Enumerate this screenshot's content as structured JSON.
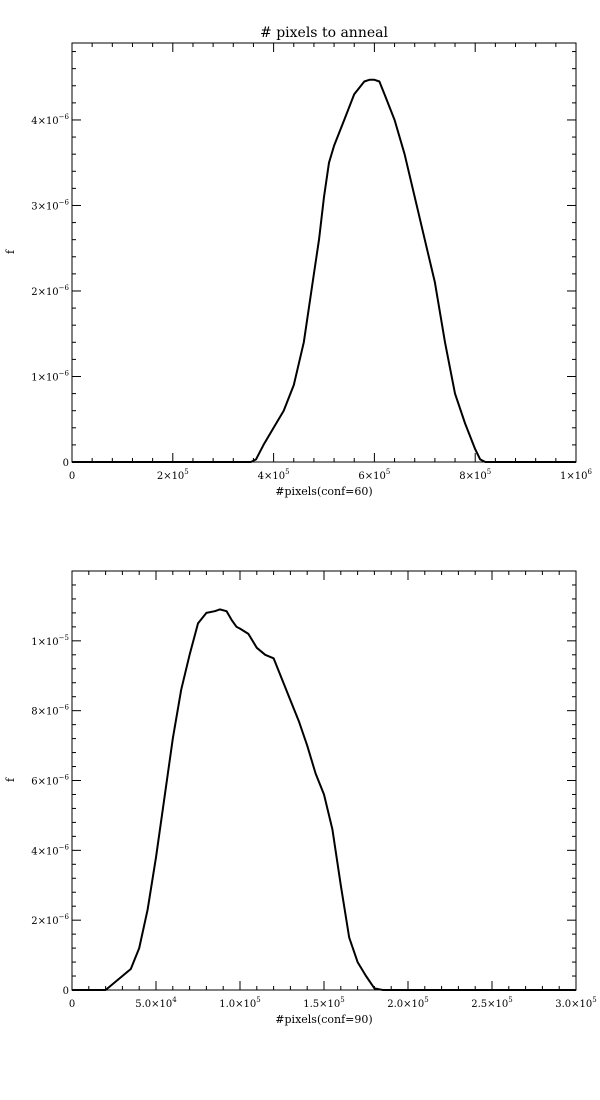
{
  "chart_data": [
    {
      "type": "line",
      "title": "# pixels to anneal",
      "xlabel": "#pixels(conf=60)",
      "ylabel": "f",
      "xlim": [
        0,
        1000000
      ],
      "ylim": [
        0,
        4.9e-06
      ],
      "x_ticks": [
        {
          "value": 0,
          "mantissa": "0",
          "exp": ""
        },
        {
          "value": 200000,
          "mantissa": "2×10",
          "exp": "5"
        },
        {
          "value": 400000,
          "mantissa": "4×10",
          "exp": "5"
        },
        {
          "value": 600000,
          "mantissa": "6×10",
          "exp": "5"
        },
        {
          "value": 800000,
          "mantissa": "8×10",
          "exp": "5"
        },
        {
          "value": 1000000,
          "mantissa": "1×10",
          "exp": "6"
        }
      ],
      "y_ticks": [
        {
          "value": 0,
          "mantissa": "0",
          "exp": ""
        },
        {
          "value": 1e-06,
          "mantissa": "1×10",
          "exp": "−6"
        },
        {
          "value": 2e-06,
          "mantissa": "2×10",
          "exp": "−6"
        },
        {
          "value": 3e-06,
          "mantissa": "3×10",
          "exp": "−6"
        },
        {
          "value": 4e-06,
          "mantissa": "4×10",
          "exp": "−6"
        }
      ],
      "series": [
        {
          "color": "#000000",
          "x": [
            0,
            100000,
            200000,
            300000,
            355000,
            365000,
            380000,
            400000,
            420000,
            440000,
            460000,
            480000,
            490000,
            500000,
            510000,
            520000,
            540000,
            560000,
            580000,
            590000,
            600000,
            610000,
            620000,
            640000,
            660000,
            680000,
            700000,
            720000,
            740000,
            760000,
            780000,
            800000,
            810000,
            820000,
            830000,
            850000,
            900000,
            1000000
          ],
          "y": [
            0,
            0,
            0,
            0,
            0,
            3e-08,
            2e-07,
            4e-07,
            6e-07,
            9e-07,
            1.4e-06,
            2.2e-06,
            2.6e-06,
            3.1e-06,
            3.5e-06,
            3.7e-06,
            4e-06,
            4.3e-06,
            4.45e-06,
            4.47e-06,
            4.47e-06,
            4.45e-06,
            4.3e-06,
            4e-06,
            3.6e-06,
            3.1e-06,
            2.6e-06,
            2.1e-06,
            1.4e-06,
            8e-07,
            4.5e-07,
            1.5e-07,
            3e-08,
            0,
            0,
            0,
            0,
            0
          ]
        }
      ]
    },
    {
      "type": "line",
      "title": "",
      "xlabel": "#pixels(conf=90)",
      "ylabel": "f",
      "xlim": [
        0,
        300000
      ],
      "ylim": [
        0,
        1.2e-05
      ],
      "x_ticks": [
        {
          "value": 0,
          "mantissa": "0",
          "exp": ""
        },
        {
          "value": 50000,
          "mantissa": "5.0×10",
          "exp": "4"
        },
        {
          "value": 100000,
          "mantissa": "1.0×10",
          "exp": "5"
        },
        {
          "value": 150000,
          "mantissa": "1.5×10",
          "exp": "5"
        },
        {
          "value": 200000,
          "mantissa": "2.0×10",
          "exp": "5"
        },
        {
          "value": 250000,
          "mantissa": "2.5×10",
          "exp": "5"
        },
        {
          "value": 300000,
          "mantissa": "3.0×10",
          "exp": "5"
        }
      ],
      "y_ticks": [
        {
          "value": 0,
          "mantissa": "0",
          "exp": ""
        },
        {
          "value": 2e-06,
          "mantissa": "2×10",
          "exp": "−6"
        },
        {
          "value": 4e-06,
          "mantissa": "4×10",
          "exp": "−6"
        },
        {
          "value": 6e-06,
          "mantissa": "6×10",
          "exp": "−6"
        },
        {
          "value": 8e-06,
          "mantissa": "8×10",
          "exp": "−6"
        },
        {
          "value": 1e-05,
          "mantissa": "1×10",
          "exp": "−5"
        }
      ],
      "series": [
        {
          "color": "#000000",
          "x": [
            0,
            10000,
            20000,
            25000,
            30000,
            35000,
            40000,
            45000,
            50000,
            55000,
            60000,
            65000,
            70000,
            75000,
            80000,
            85000,
            88000,
            92000,
            95000,
            98000,
            100000,
            105000,
            110000,
            115000,
            120000,
            125000,
            130000,
            135000,
            140000,
            145000,
            150000,
            155000,
            160000,
            165000,
            170000,
            175000,
            180000,
            185000,
            190000,
            200000,
            250000,
            300000
          ],
          "y": [
            0,
            0,
            0,
            2e-07,
            4e-07,
            6e-07,
            1.2e-06,
            2.3e-06,
            3.8e-06,
            5.5e-06,
            7.2e-06,
            8.6e-06,
            9.6e-06,
            1.05e-05,
            1.08e-05,
            1.085e-05,
            1.09e-05,
            1.085e-05,
            1.06e-05,
            1.04e-05,
            1.035e-05,
            1.02e-05,
            9.8e-06,
            9.6e-06,
            9.5e-06,
            8.9e-06,
            8.3e-06,
            7.7e-06,
            7e-06,
            6.2e-06,
            5.6e-06,
            4.6e-06,
            3e-06,
            1.5e-06,
            8e-07,
            4e-07,
            5e-08,
            0,
            0,
            0,
            0,
            0
          ]
        }
      ]
    }
  ]
}
